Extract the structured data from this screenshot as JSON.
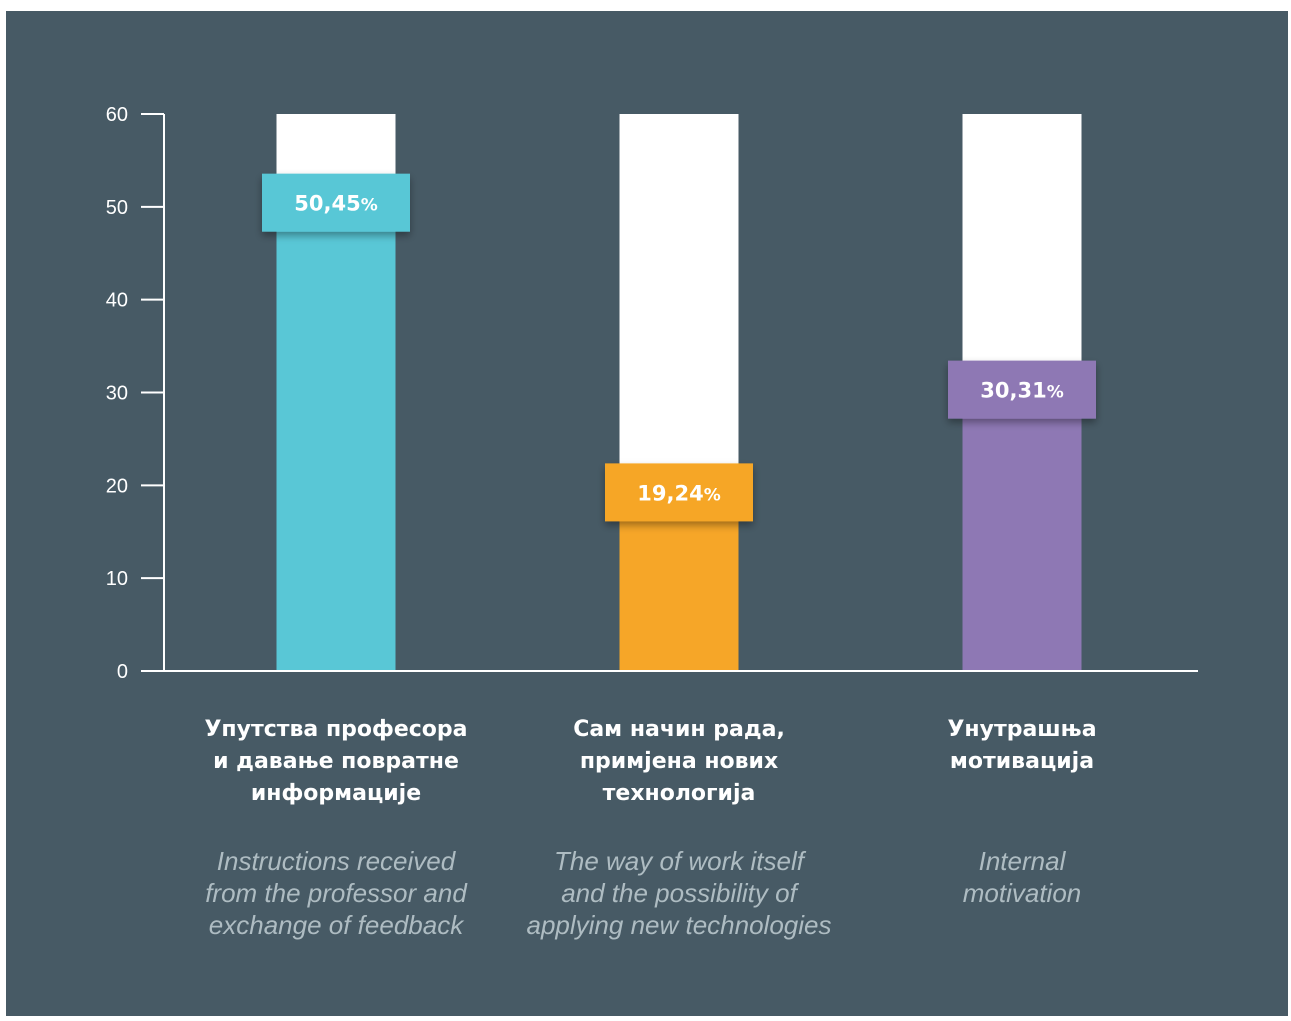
{
  "colors": {
    "background": "#475a65",
    "axis": "#ffffff",
    "track": "#ffffff",
    "series": [
      "#59c7d6",
      "#f6a628",
      "#8e78b4"
    ]
  },
  "chart_data": {
    "type": "bar",
    "ylim": [
      0,
      60
    ],
    "yticks": [
      "0",
      "10",
      "20",
      "30",
      "40",
      "50",
      "60"
    ],
    "grid": false,
    "categories": [
      "Упутства професора\nи давање повратне\nинформације",
      "Сам начин рада,\nпримјена нових\nтехнологија",
      "Унутрашња\nмотивација"
    ],
    "descriptions": [
      "Instructions received\nfrom the professor and\nexchange of feedback",
      "The way of work itself\nand the possibility of\napplying new technologies",
      "Internal\nmotivation"
    ],
    "values": [
      50.45,
      19.24,
      30.31
    ],
    "value_labels": [
      "50,45",
      "19,24",
      "30,31"
    ],
    "unit": "%"
  }
}
